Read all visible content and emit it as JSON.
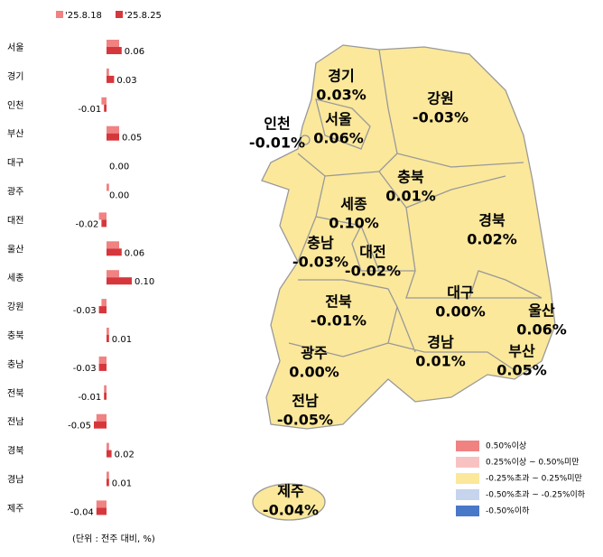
{
  "chart_data": {
    "type": "bar",
    "orientation": "horizontal",
    "categories": [
      "서울",
      "경기",
      "인천",
      "부산",
      "대구",
      "광주",
      "대전",
      "울산",
      "세종",
      "강원",
      "충북",
      "충남",
      "전북",
      "전남",
      "경북",
      "경남",
      "제주"
    ],
    "series": [
      {
        "name": "'25.8.18",
        "color": "#f08282",
        "values": [
          0.05,
          0.01,
          -0.02,
          0.05,
          0,
          0.01,
          -0.03,
          0.05,
          0.05,
          -0.02,
          0.01,
          -0.03,
          -0.01,
          -0.04,
          0.01,
          0.01,
          -0.04
        ]
      },
      {
        "name": "'25.8.25",
        "color": "#d6373c",
        "values": [
          0.06,
          0.03,
          -0.01,
          0.05,
          0,
          0,
          -0.02,
          0.06,
          0.1,
          -0.03,
          0.01,
          -0.03,
          -0.01,
          -0.05,
          0.02,
          0.01,
          -0.04
        ],
        "value_labels": [
          "0.06",
          "0.03",
          "-0.01",
          "0.05",
          "0.00",
          "0.00",
          "-0.02",
          "0.06",
          "0.10",
          "-0.03",
          "0.01",
          "-0.03",
          "-0.01",
          "-0.05",
          "0.02",
          "0.01",
          "-0.04"
        ]
      }
    ],
    "xlim": [
      -0.1,
      0.15
    ],
    "note": "(단위 : 전주 대비, %)"
  },
  "map": {
    "regions": [
      {
        "name": "경기",
        "value_label": "0.03%"
      },
      {
        "name": "강원",
        "value_label": "-0.03%"
      },
      {
        "name": "인천",
        "value_label": "-0.01%"
      },
      {
        "name": "서울",
        "value_label": "0.06%"
      },
      {
        "name": "충북",
        "value_label": "0.01%"
      },
      {
        "name": "세종",
        "value_label": "0.10%"
      },
      {
        "name": "경북",
        "value_label": "0.02%"
      },
      {
        "name": "충남",
        "value_label": "-0.03%"
      },
      {
        "name": "대전",
        "value_label": "-0.02%"
      },
      {
        "name": "전북",
        "value_label": "-0.01%"
      },
      {
        "name": "대구",
        "value_label": "0.00%"
      },
      {
        "name": "울산",
        "value_label": "0.06%"
      },
      {
        "name": "경남",
        "value_label": "0.01%"
      },
      {
        "name": "부산",
        "value_label": "0.05%"
      },
      {
        "name": "광주",
        "value_label": "0.00%"
      },
      {
        "name": "전남",
        "value_label": "-0.05%"
      },
      {
        "name": "제주",
        "value_label": "-0.04%"
      }
    ],
    "legend": [
      {
        "label": "0.50%이상",
        "color": "#f08282"
      },
      {
        "label": "0.25%이상 ~ 0.50%미만",
        "color": "#f9c2c2"
      },
      {
        "label": "-0.25%초과 ~ 0.25%미만",
        "color": "#fbe89b"
      },
      {
        "label": "-0.50%초과 ~ -0.25%이하",
        "color": "#c6d4ee"
      },
      {
        "label": "-0.50%이하",
        "color": "#4a78c8"
      }
    ]
  }
}
